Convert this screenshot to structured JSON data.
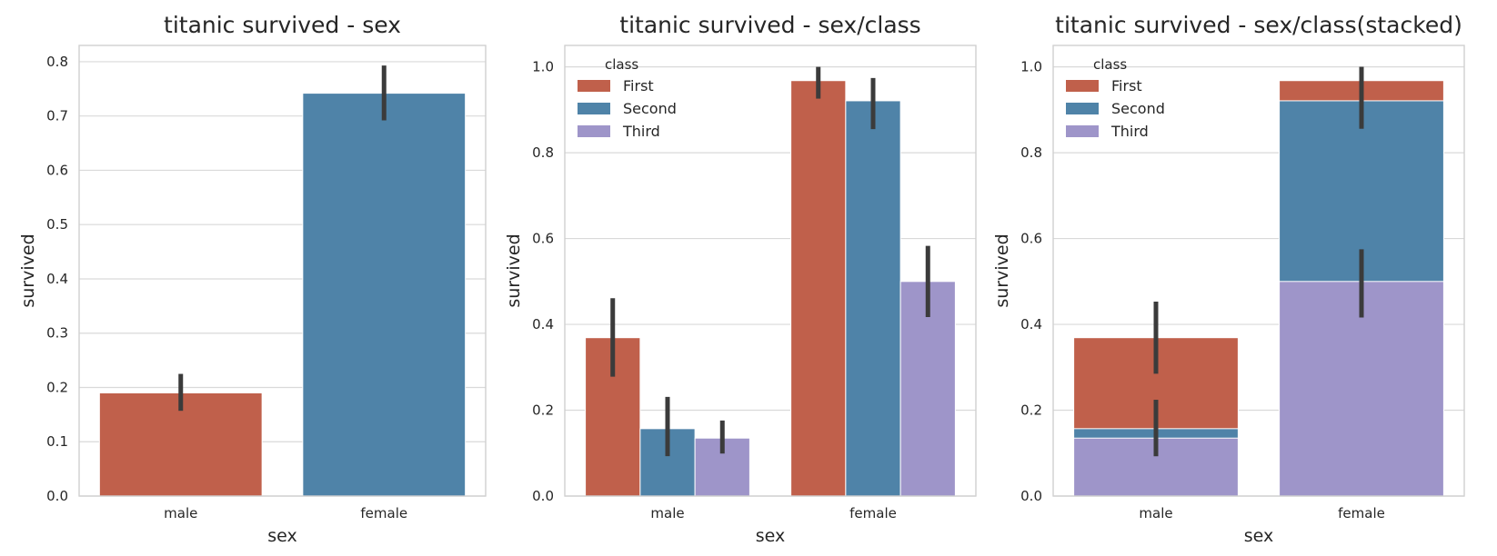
{
  "figure_colors": {
    "first": "#c0604b",
    "second": "#4f83a8",
    "third": "#9e95c9",
    "male": "#c0604b",
    "female": "#4f83a8",
    "error_bar": "#3b3b3b",
    "grid": "#d9d9d9"
  },
  "chart_data": [
    {
      "type": "bar",
      "title": "titanic survived - sex",
      "xlabel": "sex",
      "ylabel": "survived",
      "categories": [
        "male",
        "female"
      ],
      "values": [
        0.19,
        0.742
      ],
      "errors": [
        [
          0.157,
          0.225
        ],
        [
          0.692,
          0.793
        ]
      ],
      "colors": [
        "male",
        "female"
      ],
      "ylim": [
        0,
        0.83
      ],
      "yticks": [
        0.0,
        0.1,
        0.2,
        0.3,
        0.4,
        0.5,
        0.6,
        0.7,
        0.8
      ],
      "ytick_labels": [
        "0.0",
        "0.1",
        "0.2",
        "0.3",
        "0.4",
        "0.5",
        "0.6",
        "0.7",
        "0.8"
      ],
      "grid": true,
      "legend": null
    },
    {
      "type": "bar",
      "title": "titanic survived - sex/class",
      "xlabel": "sex",
      "ylabel": "survived",
      "categories": [
        "male",
        "female"
      ],
      "series": [
        {
          "name": "First",
          "color": "first",
          "values": [
            0.369,
            0.968
          ],
          "errors": [
            [
              0.278,
              0.461
            ],
            [
              0.926,
              1.0
            ]
          ]
        },
        {
          "name": "Second",
          "color": "second",
          "values": [
            0.157,
            0.921
          ],
          "errors": [
            [
              0.093,
              0.231
            ],
            [
              0.855,
              0.974
            ]
          ]
        },
        {
          "name": "Third",
          "color": "third",
          "values": [
            0.135,
            0.5
          ],
          "errors": [
            [
              0.099,
              0.176
            ],
            [
              0.417,
              0.583
            ]
          ]
        }
      ],
      "ylim": [
        0,
        1.05
      ],
      "yticks": [
        0.0,
        0.2,
        0.4,
        0.6,
        0.8,
        1.0
      ],
      "ytick_labels": [
        "0.0",
        "0.2",
        "0.4",
        "0.6",
        "0.8",
        "1.0"
      ],
      "grid": true,
      "legend": {
        "title": "class",
        "placement": "top-left",
        "entries": [
          "First",
          "Second",
          "Third"
        ]
      }
    },
    {
      "type": "bar",
      "stacked_overlay": true,
      "title": "titanic survived - sex/class(stacked)",
      "xlabel": "sex",
      "ylabel": "survived",
      "categories": [
        "male",
        "female"
      ],
      "series": [
        {
          "name": "First",
          "color": "first",
          "values": [
            0.369,
            0.968
          ],
          "errors": [
            [
              0.285,
              0.453
            ],
            [
              0.856,
              1.0
            ]
          ]
        },
        {
          "name": "Second",
          "color": "second",
          "values": [
            0.157,
            0.921
          ],
          "errors": [
            [
              0.093,
              0.224
            ],
            [
              0.856,
              1.0
            ]
          ]
        },
        {
          "name": "Third",
          "color": "third",
          "values": [
            0.135,
            0.5
          ],
          "errors": [
            [
              0.093,
              0.224
            ],
            [
              0.416,
              0.575
            ]
          ]
        }
      ],
      "ylim": [
        0,
        1.05
      ],
      "yticks": [
        0.0,
        0.2,
        0.4,
        0.6,
        0.8,
        1.0
      ],
      "ytick_labels": [
        "0.0",
        "0.2",
        "0.4",
        "0.6",
        "0.8",
        "1.0"
      ],
      "grid": true,
      "legend": {
        "title": "class",
        "placement": "top-left",
        "entries": [
          "First",
          "Second",
          "Third"
        ]
      }
    }
  ]
}
